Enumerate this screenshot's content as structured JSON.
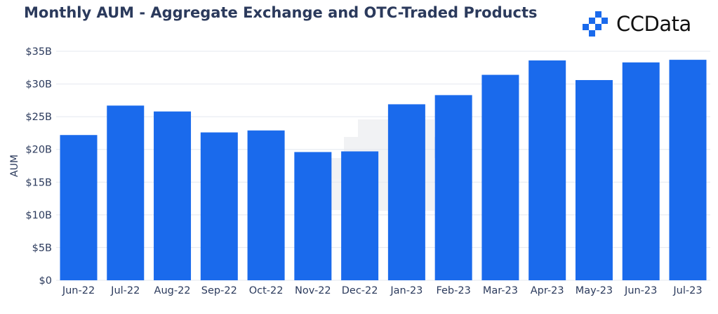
{
  "colors": {
    "bar": "#1a6aec",
    "title": "#2b3a5c",
    "grid": "#e4e8ef",
    "logo_mark": "#1a6aec"
  },
  "logo": {
    "text": "CCData",
    "icon": "ccdata-logo-mark-icon"
  },
  "chart_data": {
    "type": "bar",
    "title": "Monthly AUM - Aggregate Exchange and OTC-Traded Products",
    "xlabel": "",
    "ylabel": "AUM",
    "ylim": [
      0,
      35
    ],
    "yticks": [
      0,
      5,
      10,
      15,
      20,
      25,
      30,
      35
    ],
    "ytick_labels": [
      "$0",
      "$5B",
      "$10B",
      "$15B",
      "$20B",
      "$25B",
      "$30B",
      "$35B"
    ],
    "grid": true,
    "legend": "none",
    "units": "USD billions",
    "categories": [
      "Jun-22",
      "Jul-22",
      "Aug-22",
      "Sep-22",
      "Oct-22",
      "Nov-22",
      "Dec-22",
      "Jan-23",
      "Feb-23",
      "Mar-23",
      "Apr-23",
      "May-23",
      "Jun-23",
      "Jul-23"
    ],
    "values": [
      22.2,
      26.7,
      25.8,
      22.6,
      22.9,
      19.6,
      19.7,
      26.9,
      28.3,
      31.4,
      33.6,
      30.6,
      33.3,
      33.7
    ]
  }
}
